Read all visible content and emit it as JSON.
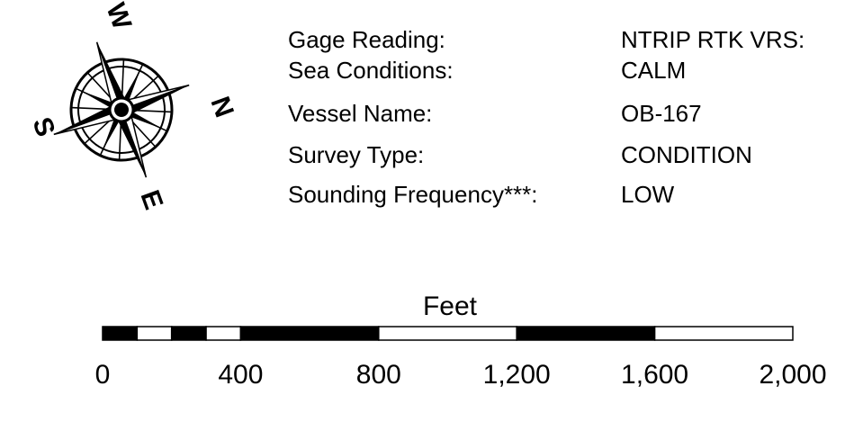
{
  "compass": {
    "labels": {
      "north": "N",
      "south": "S",
      "east": "E",
      "west": "W"
    }
  },
  "survey_info": {
    "rows": [
      {
        "label": "Gage Reading:",
        "value": "NTRIP RTK VRS:"
      },
      {
        "label": "Sea Conditions:",
        "value": "CALM"
      },
      {
        "label": "Vessel Name:",
        "value": "OB-167"
      },
      {
        "label": "Survey Type:",
        "value": "CONDITION"
      },
      {
        "label": "Sounding Frequency***:",
        "value": "LOW"
      }
    ]
  },
  "scale_bar": {
    "unit": "Feet",
    "tick_labels": [
      "0",
      "400",
      "800",
      "1,200",
      "1,600",
      "2,000"
    ],
    "segments": [
      {
        "from": 0,
        "to": 100,
        "color": "black"
      },
      {
        "from": 100,
        "to": 200,
        "color": "white"
      },
      {
        "from": 200,
        "to": 300,
        "color": "black"
      },
      {
        "from": 300,
        "to": 400,
        "color": "white"
      },
      {
        "from": 400,
        "to": 800,
        "color": "black"
      },
      {
        "from": 800,
        "to": 1200,
        "color": "white"
      },
      {
        "from": 1200,
        "to": 1600,
        "color": "black"
      },
      {
        "from": 1600,
        "to": 2000,
        "color": "white"
      }
    ]
  }
}
